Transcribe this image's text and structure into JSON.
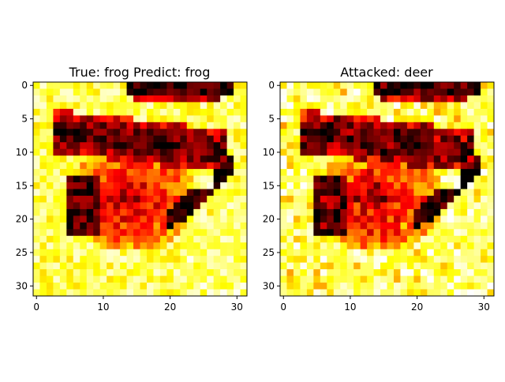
{
  "chart_data": [
    {
      "type": "heatmap",
      "title": "True: frog  Predict: frog",
      "xlabel": "",
      "ylabel": "",
      "grid": false,
      "colormap": "hot",
      "xlim": [
        -0.5,
        31.5
      ],
      "ylim": [
        31.5,
        -0.5
      ],
      "x_ticks": [
        0,
        10,
        20,
        30
      ],
      "y_ticks": [
        0,
        5,
        10,
        15,
        20,
        25,
        30
      ],
      "image_size": [
        32,
        32
      ]
    },
    {
      "type": "heatmap",
      "title": "Attacked: deer",
      "xlabel": "",
      "ylabel": "",
      "grid": false,
      "colormap": "hot",
      "xlim": [
        -0.5,
        31.5
      ],
      "ylim": [
        31.5,
        -0.5
      ],
      "x_ticks": [
        0,
        10,
        20,
        30
      ],
      "y_ticks": [
        0,
        5,
        10,
        15,
        20,
        25,
        30
      ],
      "image_size": [
        32,
        32
      ]
    }
  ]
}
